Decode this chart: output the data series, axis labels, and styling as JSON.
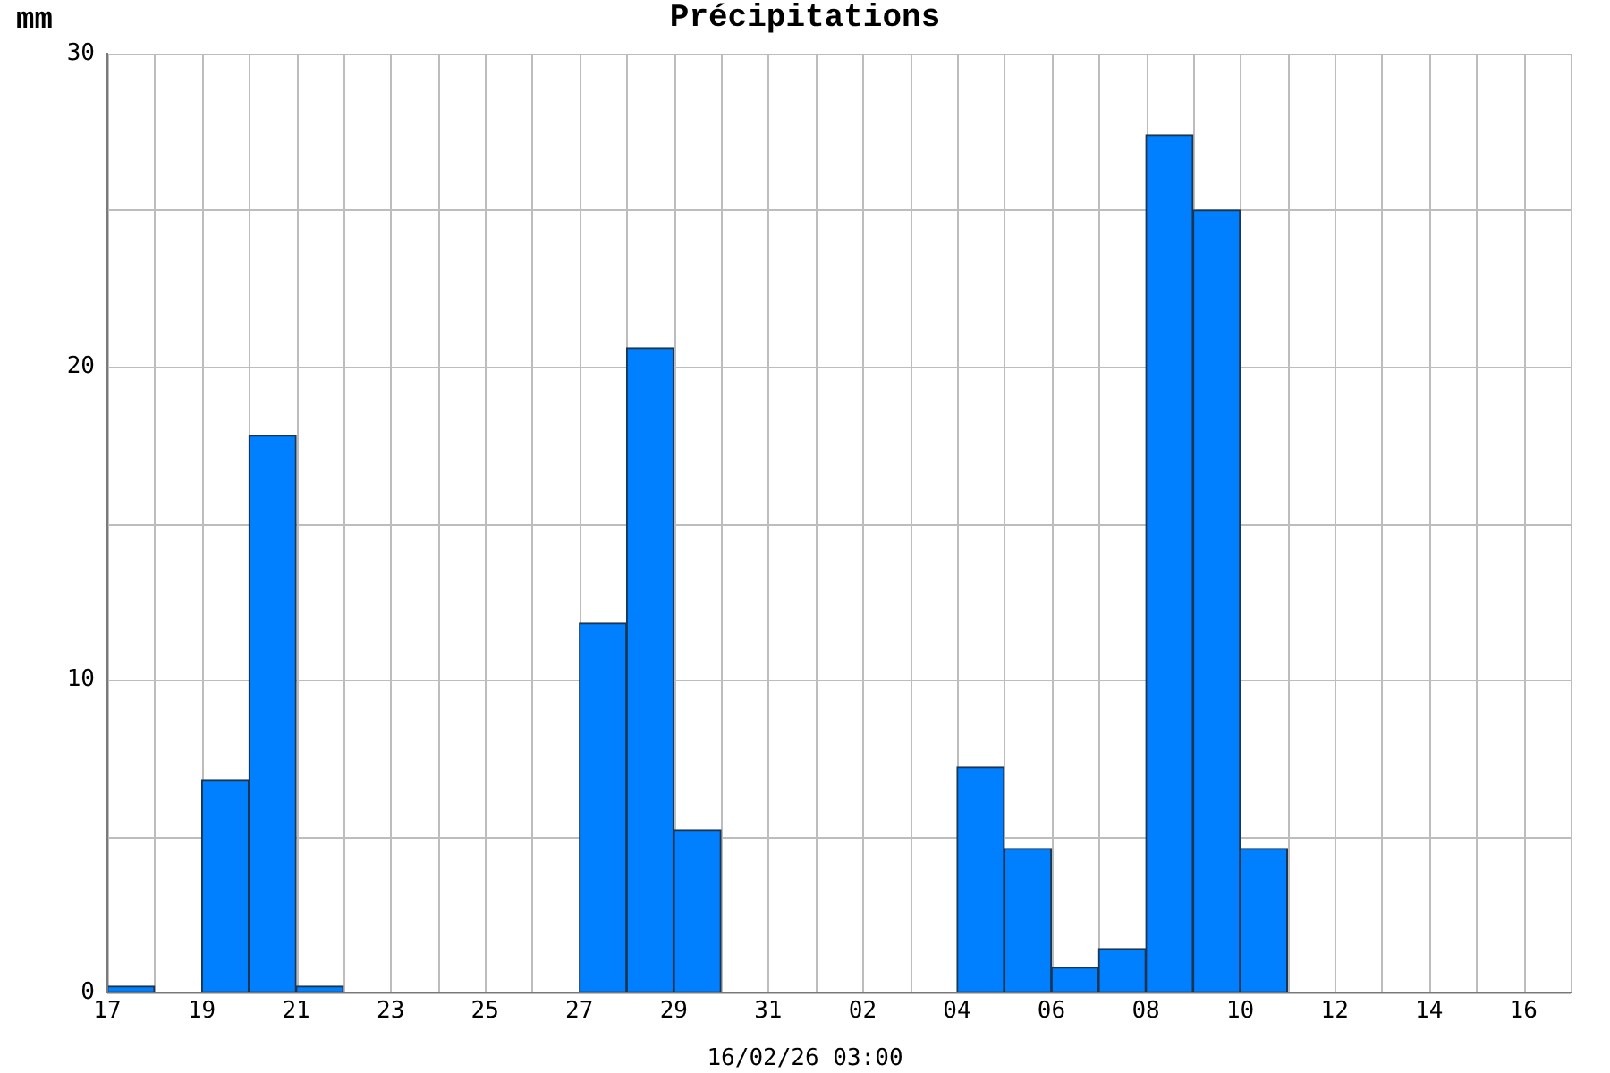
{
  "chart_data": {
    "type": "histogram",
    "title": "Précipitations",
    "ylabel": "mm",
    "xlabel": "16/02/26 03:00",
    "bins": [
      "--01-17",
      "--01-18",
      "--01-19",
      "--01-20",
      "--01-21",
      "--01-22",
      "--01-23",
      "--01-24",
      "--01-25",
      "--01-26",
      "--01-27",
      "--01-28",
      "--01-29",
      "--01-30",
      "--01-31",
      "--02-01",
      "--02-02",
      "--02-03",
      "--02-04",
      "--02-05",
      "--02-06",
      "--02-07",
      "--02-08",
      "--02-09",
      "--02-10",
      "--02-11",
      "--02-12",
      "--02-13",
      "--02-14",
      "--02-15",
      "--02-16",
      "--02-17"
    ],
    "values": [
      0.2,
      0,
      6.8,
      17.8,
      0.2,
      0,
      0,
      0,
      0,
      0,
      11.8,
      20.6,
      5.2,
      0,
      0,
      0,
      0,
      0,
      7.2,
      4.6,
      0.8,
      1.4,
      27.4,
      25.0,
      4.6,
      0,
      0,
      0,
      0,
      0,
      0
    ],
    "color": "#0080ff",
    "xlim": [
      "--01-17",
      "--02-17"
    ],
    "xticks": [
      {
        "value": "--01-17",
        "label": "17"
      },
      {
        "value": "--01-18",
        "label": null
      },
      {
        "value": "--01-19",
        "label": "19"
      },
      {
        "value": "--01-20",
        "label": null
      },
      {
        "value": "--01-21",
        "label": "21"
      },
      {
        "value": "--01-22",
        "label": null
      },
      {
        "value": "--01-23",
        "label": "23"
      },
      {
        "value": "--01-24",
        "label": null
      },
      {
        "value": "--01-25",
        "label": "25"
      },
      {
        "value": "--01-26",
        "label": null
      },
      {
        "value": "--01-27",
        "label": "27"
      },
      {
        "value": "--01-28",
        "label": null
      },
      {
        "value": "--01-29",
        "label": "29"
      },
      {
        "value": "--01-30",
        "label": null
      },
      {
        "value": "--01-31",
        "label": "31"
      },
      {
        "value": "--02-01",
        "label": null
      },
      {
        "value": "--02-02",
        "label": "02"
      },
      {
        "value": "--02-03",
        "label": null
      },
      {
        "value": "--02-04",
        "label": "04"
      },
      {
        "value": "--02-05",
        "label": null
      },
      {
        "value": "--02-06",
        "label": "06"
      },
      {
        "value": "--02-07",
        "label": null
      },
      {
        "value": "--02-08",
        "label": "08"
      },
      {
        "value": "--02-09",
        "label": null
      },
      {
        "value": "--02-10",
        "label": "10"
      },
      {
        "value": "--02-11",
        "label": null
      },
      {
        "value": "--02-12",
        "label": "12"
      },
      {
        "value": "--02-13",
        "label": null
      },
      {
        "value": "--02-14",
        "label": "14"
      },
      {
        "value": "--02-15",
        "label": null
      },
      {
        "value": "--02-16",
        "label": "16"
      },
      {
        "value": "--02-17",
        "label": null
      }
    ],
    "ylim": [
      0,
      30
    ],
    "yticks": [
      0,
      {
        "value": 5,
        "label": null
      },
      10,
      {
        "value": 15,
        "label": null
      },
      20,
      {
        "value": 25,
        "label": null
      },
      30
    ],
    "grid": true
  }
}
